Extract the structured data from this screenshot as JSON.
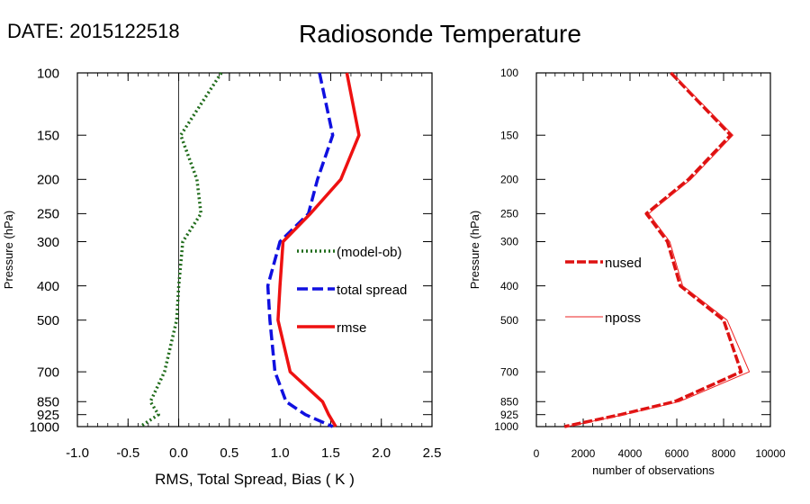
{
  "date_label": "DATE: 2015122518",
  "title": "Radiosonde Temperature",
  "colors": {
    "bias": "#1f6b1a",
    "spread": "#1010e0",
    "rmse": "#ee1111",
    "nused": "#dd1111",
    "nposs": "#ee2222"
  },
  "chart_data": [
    {
      "type": "line",
      "title": "",
      "xlabel": "RMS, Total Spread, Bias ( K )",
      "ylabel": "Pressure (hPa)",
      "xlim": [
        -1.0,
        2.5
      ],
      "ylim": [
        1000,
        100
      ],
      "yscale": "log",
      "xticks": [
        "-1.0",
        "-0.5",
        "0.0",
        "0.5",
        "1.0",
        "1.5",
        "2.0",
        "2.5"
      ],
      "yticks": [
        "100",
        "150",
        "200",
        "250",
        "300",
        "400",
        "500",
        "700",
        "850",
        "925",
        "1000"
      ],
      "y": [
        100,
        150,
        200,
        250,
        300,
        400,
        500,
        700,
        850,
        925,
        1000
      ],
      "legend_position": "center-right",
      "series": [
        {
          "name": "(model-ob)",
          "style": "dotted",
          "values": [
            0.42,
            0.02,
            0.18,
            0.22,
            0.04,
            0.0,
            -0.02,
            -0.14,
            -0.28,
            -0.2,
            -0.38
          ]
        },
        {
          "name": "total spread",
          "style": "dashed",
          "values": [
            1.39,
            1.52,
            1.37,
            1.28,
            1.0,
            0.88,
            0.9,
            0.95,
            1.06,
            1.25,
            1.52
          ]
        },
        {
          "name": "rmse",
          "style": "solid",
          "values": [
            1.66,
            1.78,
            1.6,
            1.3,
            1.03,
            1.0,
            0.98,
            1.1,
            1.42,
            1.48,
            1.55
          ]
        }
      ]
    },
    {
      "type": "line",
      "title": "",
      "xlabel": "number of observations",
      "ylabel": "Pressure (hPa)",
      "xlim": [
        0,
        10000
      ],
      "ylim": [
        1000,
        100
      ],
      "yscale": "log",
      "xticks": [
        "0",
        "2000",
        "4000",
        "6000",
        "8000",
        "10000"
      ],
      "yticks": [
        "100",
        "150",
        "200",
        "250",
        "300",
        "400",
        "500",
        "700",
        "850",
        "925",
        "1000"
      ],
      "y": [
        100,
        150,
        200,
        250,
        300,
        400,
        500,
        700,
        850,
        925,
        1000
      ],
      "legend_position": "center-left",
      "series": [
        {
          "name": "nused",
          "style": "thick-dashed",
          "values": [
            5750,
            8300,
            6500,
            4700,
            5600,
            6150,
            8000,
            8750,
            5900,
            3600,
            1200
          ]
        },
        {
          "name": "nposs",
          "style": "thin-solid",
          "values": [
            5800,
            8400,
            6600,
            4800,
            5700,
            6250,
            8150,
            9100,
            6100,
            3750,
            1300
          ]
        }
      ]
    }
  ]
}
